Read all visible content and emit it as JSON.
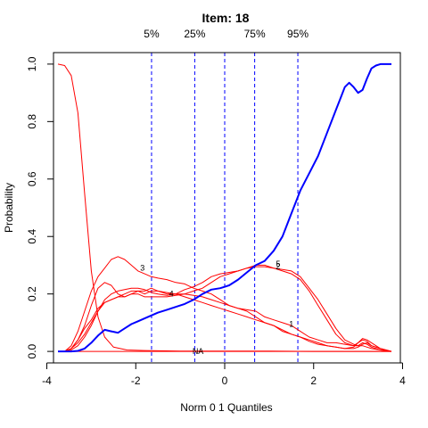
{
  "chart_data": {
    "type": "line",
    "title": "Item:  18",
    "xlabel": "Norm 0 1 Quantiles",
    "ylabel": "Probability",
    "xlim": [
      -3.85,
      3.95
    ],
    "ylim": [
      -0.04,
      1.04
    ],
    "grid": false,
    "x_ticks": [
      "-4",
      "-2",
      "0",
      "2",
      "4"
    ],
    "x_tick_values": [
      -4,
      -2,
      0,
      2,
      4
    ],
    "y_ticks": [
      "0.0",
      "0.2",
      "0.4",
      "0.6",
      "0.8",
      "1.0"
    ],
    "y_tick_values": [
      0,
      0.2,
      0.4,
      0.6,
      0.8,
      1.0
    ],
    "quantile_lines": [
      {
        "x": -1.645,
        "label": "5%"
      },
      {
        "x": -0.674,
        "label": "25%"
      },
      {
        "x": 0,
        "label": ""
      },
      {
        "x": 0.674,
        "label": "75%"
      },
      {
        "x": 1.645,
        "label": "95%"
      }
    ],
    "colors": {
      "options": "#ff0000",
      "correct": "#0000ff",
      "quantile": "#0000ff",
      "axis": "#000000"
    },
    "series": [
      {
        "name": "",
        "role": "option",
        "x": [
          -3.75,
          -3.6,
          -3.45,
          -3.3,
          -3.15,
          -3.0,
          -2.85,
          -2.7,
          -2.5,
          -2.2,
          -1.8,
          -1.0,
          0,
          1.0,
          2.0,
          3.0,
          3.75
        ],
        "y": [
          1.0,
          0.995,
          0.96,
          0.83,
          0.55,
          0.28,
          0.12,
          0.05,
          0.015,
          0.005,
          0.003,
          0.001,
          0.001,
          0.001,
          0.0,
          0.0,
          0.0
        ]
      },
      {
        "name": "3",
        "role": "option",
        "x": [
          -3.75,
          -3.6,
          -3.45,
          -3.3,
          -3.15,
          -3.0,
          -2.85,
          -2.7,
          -2.55,
          -2.4,
          -2.25,
          -2.1,
          -1.95,
          -1.8,
          -1.65,
          -1.5,
          -1.3,
          -1.1,
          -0.9,
          -0.7,
          -0.5,
          -0.3,
          -0.1,
          0.1,
          0.3,
          0.5,
          0.7,
          0.9,
          1.1,
          1.3,
          1.5,
          1.7,
          1.9,
          2.1,
          2.3,
          2.5,
          2.7,
          2.9,
          3.0,
          3.1,
          3.2,
          3.3,
          3.5,
          3.75
        ],
        "y": [
          0.0,
          0.0,
          0.02,
          0.07,
          0.14,
          0.21,
          0.26,
          0.29,
          0.32,
          0.33,
          0.32,
          0.3,
          0.28,
          0.27,
          0.26,
          0.255,
          0.25,
          0.24,
          0.235,
          0.22,
          0.21,
          0.2,
          0.18,
          0.16,
          0.15,
          0.14,
          0.12,
          0.1,
          0.09,
          0.07,
          0.06,
          0.05,
          0.04,
          0.03,
          0.02,
          0.015,
          0.01,
          0.015,
          0.03,
          0.04,
          0.035,
          0.02,
          0.01,
          0.0
        ]
      },
      {
        "name": "4",
        "role": "option",
        "x": [
          -3.75,
          -3.6,
          -3.45,
          -3.3,
          -3.15,
          -3.0,
          -2.85,
          -2.7,
          -2.55,
          -2.4,
          -2.25,
          -2.1,
          -1.95,
          -1.8,
          -1.65,
          -1.5,
          -1.3,
          -1.1,
          -0.9,
          -0.7,
          -0.5,
          -0.3,
          -0.1,
          0.1,
          0.3,
          0.5,
          0.7,
          0.9,
          1.1,
          1.3,
          1.5,
          1.7,
          1.9,
          2.1,
          2.3,
          2.5,
          2.7,
          2.9,
          3.0,
          3.1,
          3.2,
          3.3,
          3.5,
          3.75
        ],
        "y": [
          0.0,
          0.0,
          0.01,
          0.04,
          0.08,
          0.11,
          0.15,
          0.17,
          0.18,
          0.19,
          0.2,
          0.21,
          0.21,
          0.2,
          0.21,
          0.21,
          0.205,
          0.2,
          0.2,
          0.195,
          0.19,
          0.18,
          0.17,
          0.16,
          0.15,
          0.145,
          0.14,
          0.12,
          0.11,
          0.1,
          0.09,
          0.07,
          0.05,
          0.04,
          0.03,
          0.03,
          0.025,
          0.02,
          0.03,
          0.045,
          0.04,
          0.03,
          0.01,
          0.0
        ]
      },
      {
        "name": "5",
        "role": "option",
        "x": [
          -3.75,
          -3.6,
          -3.45,
          -3.3,
          -3.15,
          -3.0,
          -2.85,
          -2.7,
          -2.55,
          -2.4,
          -2.25,
          -2.1,
          -1.95,
          -1.8,
          -1.65,
          -1.5,
          -1.3,
          -1.1,
          -0.9,
          -0.7,
          -0.5,
          -0.3,
          -0.1,
          0.1,
          0.3,
          0.5,
          0.7,
          0.9,
          1.1,
          1.3,
          1.5,
          1.7,
          1.9,
          2.1,
          2.3,
          2.5,
          2.7,
          2.9,
          3.0,
          3.1,
          3.2,
          3.3,
          3.5,
          3.75
        ],
        "y": [
          0.0,
          0.0,
          0.01,
          0.03,
          0.06,
          0.1,
          0.14,
          0.17,
          0.18,
          0.19,
          0.19,
          0.2,
          0.2,
          0.19,
          0.19,
          0.19,
          0.19,
          0.195,
          0.2,
          0.21,
          0.22,
          0.24,
          0.26,
          0.27,
          0.28,
          0.29,
          0.3,
          0.3,
          0.29,
          0.28,
          0.27,
          0.25,
          0.21,
          0.16,
          0.11,
          0.06,
          0.03,
          0.02,
          0.02,
          0.03,
          0.025,
          0.015,
          0.005,
          0.0
        ]
      },
      {
        "name": "1",
        "role": "option",
        "x": [
          -3.75,
          -3.6,
          -3.45,
          -3.3,
          -3.15,
          -3.0,
          -2.85,
          -2.7,
          -2.55,
          -2.4,
          -2.25,
          -2.1,
          -1.95,
          -1.8,
          -1.65,
          -1.5,
          -1.3,
          -1.1,
          -0.9,
          -0.7,
          -0.5,
          -0.3,
          -0.1,
          0.1,
          0.3,
          0.5,
          0.7,
          0.9,
          1.1,
          1.3,
          1.5,
          1.7,
          1.9,
          2.1,
          2.3,
          2.5,
          2.7,
          2.9,
          3.0,
          3.1,
          3.2,
          3.3,
          3.5,
          3.75
        ],
        "y": [
          0.0,
          0.0,
          0.01,
          0.04,
          0.09,
          0.16,
          0.22,
          0.24,
          0.23,
          0.2,
          0.19,
          0.2,
          0.21,
          0.21,
          0.22,
          0.21,
          0.2,
          0.2,
          0.19,
          0.18,
          0.17,
          0.16,
          0.15,
          0.14,
          0.13,
          0.12,
          0.11,
          0.1,
          0.09,
          0.075,
          0.06,
          0.05,
          0.035,
          0.025,
          0.02,
          0.015,
          0.01,
          0.01,
          0.015,
          0.025,
          0.03,
          0.02,
          0.01,
          0.0
        ]
      },
      {
        "name": "2",
        "role": "option",
        "x": [
          -3.75,
          -3.6,
          -3.45,
          -3.3,
          -3.15,
          -3.0,
          -2.85,
          -2.7,
          -2.55,
          -2.4,
          -2.25,
          -2.1,
          -1.95,
          -1.8,
          -1.65,
          -1.5,
          -1.3,
          -1.1,
          -0.9,
          -0.7,
          -0.5,
          -0.3,
          -0.1,
          0.1,
          0.3,
          0.5,
          0.7,
          0.9,
          1.1,
          1.3,
          1.5,
          1.7,
          1.9,
          2.1,
          2.3,
          2.5,
          2.7,
          2.9,
          3.0,
          3.1,
          3.2,
          3.3,
          3.5,
          3.75
        ],
        "y": [
          0.0,
          0.0,
          0.005,
          0.02,
          0.05,
          0.09,
          0.14,
          0.18,
          0.2,
          0.21,
          0.215,
          0.22,
          0.22,
          0.215,
          0.205,
          0.2,
          0.195,
          0.2,
          0.215,
          0.225,
          0.24,
          0.26,
          0.27,
          0.275,
          0.28,
          0.29,
          0.295,
          0.295,
          0.29,
          0.285,
          0.28,
          0.26,
          0.22,
          0.18,
          0.13,
          0.08,
          0.04,
          0.025,
          0.02,
          0.02,
          0.015,
          0.01,
          0.005,
          0.0
        ]
      },
      {
        "name": "NA",
        "role": "option",
        "x": [
          -3.75,
          -3.0,
          -2.0,
          -1.0,
          0.0,
          1.0,
          2.0,
          3.0,
          3.75
        ],
        "y": [
          0.0,
          0.0,
          0.0,
          0.0,
          0.0,
          0.0,
          0.0,
          0.0,
          0.0
        ]
      },
      {
        "name": "",
        "role": "correct",
        "x": [
          -3.75,
          -3.6,
          -3.45,
          -3.3,
          -3.15,
          -3.0,
          -2.85,
          -2.7,
          -2.55,
          -2.4,
          -2.25,
          -2.1,
          -1.95,
          -1.8,
          -1.65,
          -1.5,
          -1.3,
          -1.1,
          -0.9,
          -0.7,
          -0.5,
          -0.3,
          -0.1,
          0.1,
          0.3,
          0.5,
          0.7,
          0.9,
          1.1,
          1.3,
          1.5,
          1.7,
          1.9,
          2.1,
          2.3,
          2.5,
          2.6,
          2.7,
          2.8,
          2.9,
          3.0,
          3.1,
          3.2,
          3.3,
          3.4,
          3.5,
          3.75
        ],
        "y": [
          0.0,
          0.0,
          0.0,
          0.002,
          0.01,
          0.03,
          0.055,
          0.075,
          0.07,
          0.065,
          0.08,
          0.095,
          0.105,
          0.115,
          0.125,
          0.135,
          0.145,
          0.155,
          0.165,
          0.18,
          0.2,
          0.215,
          0.22,
          0.23,
          0.25,
          0.275,
          0.3,
          0.315,
          0.35,
          0.4,
          0.48,
          0.56,
          0.62,
          0.68,
          0.76,
          0.84,
          0.88,
          0.92,
          0.935,
          0.92,
          0.9,
          0.91,
          0.95,
          0.985,
          0.995,
          1.0,
          1.0
        ]
      }
    ],
    "annotations": [
      {
        "text": "3",
        "x": -1.85,
        "y": 0.29
      },
      {
        "text": "4",
        "x": -1.2,
        "y": 0.2
      },
      {
        "text": "5",
        "x": 1.2,
        "y": 0.305
      },
      {
        "text": "2",
        "x": 1.2,
        "y": 0.295
      },
      {
        "text": "1",
        "x": 1.5,
        "y": 0.095
      },
      {
        "text": "NA",
        "x": -0.6,
        "y": 0.0
      }
    ]
  }
}
